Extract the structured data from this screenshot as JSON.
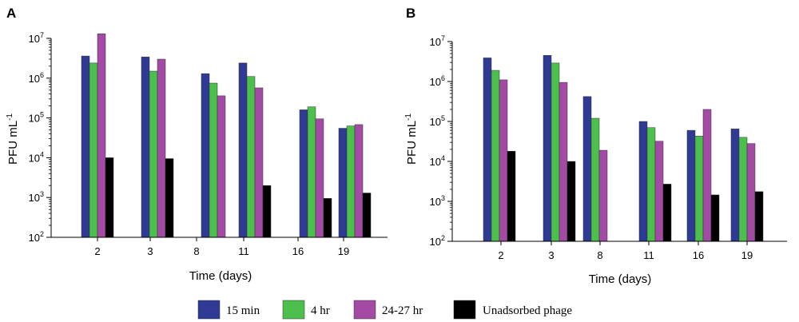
{
  "legend": {
    "items": [
      {
        "label": "15 min",
        "color": "#2e3a94"
      },
      {
        "label": "4 hr",
        "color": "#4cbf4c"
      },
      {
        "label": "24-27 hr",
        "color": "#a24aa4"
      },
      {
        "label": "Unadsorbed phage",
        "color": "#000000"
      }
    ]
  },
  "chart_data": [
    {
      "panel": "A",
      "type": "bar",
      "yscale": "log",
      "xlabel": "Time (days)",
      "ylabel": "PFU mL",
      "ylabel_superscript": "-1",
      "ylim": [
        100,
        10000000
      ],
      "y_ticks": [
        {
          "base": "10",
          "exp": "2",
          "value": 100
        },
        {
          "base": "10",
          "exp": "3",
          "value": 1000
        },
        {
          "base": "10",
          "exp": "4",
          "value": 10000
        },
        {
          "base": "10",
          "exp": "5",
          "value": 100000
        },
        {
          "base": "10",
          "exp": "6",
          "value": 1000000
        },
        {
          "base": "10",
          "exp": "7",
          "value": 10000000
        }
      ],
      "categories": [
        "2",
        "3",
        "8",
        "11",
        "16",
        "19"
      ],
      "series": [
        {
          "name": "15 min",
          "values": [
            3600000,
            3400000,
            1300000,
            2400000,
            160000,
            55000
          ]
        },
        {
          "name": "4 hr",
          "values": [
            2400000,
            1500000,
            750000,
            1100000,
            190000,
            63000
          ]
        },
        {
          "name": "24-27 hr",
          "values": [
            13000000,
            3000000,
            360000,
            570000,
            95000,
            68000
          ]
        },
        {
          "name": "Unadsorbed phage",
          "values": [
            10000,
            9500,
            null,
            2000,
            950,
            1300
          ]
        }
      ]
    },
    {
      "panel": "B",
      "type": "bar",
      "yscale": "log",
      "xlabel": "Time (days)",
      "ylabel": "PFU mL",
      "ylabel_superscript": "-1",
      "ylim": [
        100,
        10000000
      ],
      "y_ticks": [
        {
          "base": "10",
          "exp": "2",
          "value": 100
        },
        {
          "base": "10",
          "exp": "3",
          "value": 1000
        },
        {
          "base": "10",
          "exp": "4",
          "value": 10000
        },
        {
          "base": "10",
          "exp": "5",
          "value": 100000
        },
        {
          "base": "10",
          "exp": "6",
          "value": 1000000
        },
        {
          "base": "10",
          "exp": "7",
          "value": 10000000
        }
      ],
      "categories": [
        "2",
        "3",
        "8",
        "11",
        "16",
        "19"
      ],
      "series": [
        {
          "name": "15 min",
          "values": [
            3900000,
            4500000,
            420000,
            100000,
            60000,
            65000
          ]
        },
        {
          "name": "4 hr",
          "values": [
            1900000,
            2900000,
            120000,
            70000,
            43000,
            40000
          ]
        },
        {
          "name": "24-27 hr",
          "values": [
            1100000,
            950000,
            19000,
            32000,
            200000,
            28000
          ]
        },
        {
          "name": "Unadsorbed phage",
          "values": [
            18000,
            10000,
            null,
            2700,
            1450,
            1750
          ]
        }
      ]
    }
  ]
}
